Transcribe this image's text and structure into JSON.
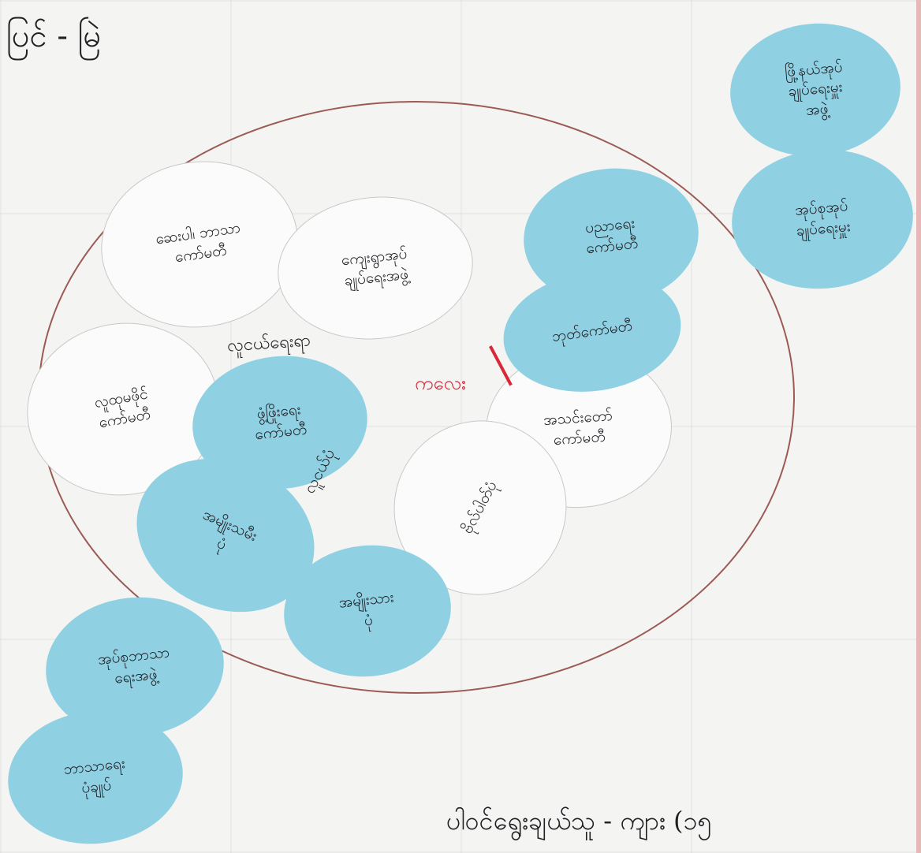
{
  "header_label": "ပြင် - မြဲ",
  "footer_label": "ပါဝင်ရွေးချယ်သူ - ကျား (၁၅",
  "center_label": "ကလေး",
  "inner_labels": {
    "upper": "လူငယ်ရေးရာ",
    "lower": "လူငယ်ပုံ"
  },
  "circles": [
    {
      "id": "c1",
      "label": "ဖြို့နယ်အုပ်\nချုပ်ရေးမှူး\nအဖွဲ့",
      "color": "blue"
    },
    {
      "id": "c2",
      "label": "အုပ်စုအုပ်\nချုပ်ရေးမှူး",
      "color": "blue"
    },
    {
      "id": "c3",
      "label": "ဆေးပါ၊ ဘာသာ\nကော်မတီ",
      "color": "white"
    },
    {
      "id": "c4",
      "label": "ကျေးရွာအုပ်\nချုပ်ရေးအဖွဲ့",
      "color": "white"
    },
    {
      "id": "c5",
      "label": "ပညာရေး\nကော်မတီ",
      "color": "blue"
    },
    {
      "id": "c6",
      "label": "ဘုတ်ကော်မတီ",
      "color": "blue"
    },
    {
      "id": "c7",
      "label": "အသင်းတော်\nကော်မတီ",
      "color": "white"
    },
    {
      "id": "c8",
      "label": "လူထုမဖိုင်\nကော်မတီ",
      "color": "white"
    },
    {
      "id": "c9",
      "label": "ဖွံ့ဖြိုးရေး\nကော်မတီ",
      "color": "blue"
    },
    {
      "id": "c10",
      "label": "ဗိုလ်ပါတ်ပုံ",
      "color": "white"
    },
    {
      "id": "c11",
      "label": "အမျိုးသမီး\nပုံ",
      "color": "blue"
    },
    {
      "id": "c12",
      "label": "အမျိုးသား\nပုံ",
      "color": "blue"
    },
    {
      "id": "c13",
      "label": "အုပ်စုဘာသာ\nရေးအဖွဲ့",
      "color": "blue"
    },
    {
      "id": "c14",
      "label": "ဘာသာရေး\nပုံချုပ်",
      "color": "blue"
    }
  ],
  "colors": {
    "blue": "#8fd0e3",
    "white": "#fbfbfb",
    "outline": "#9c5a55",
    "accent": "#d9273a"
  }
}
